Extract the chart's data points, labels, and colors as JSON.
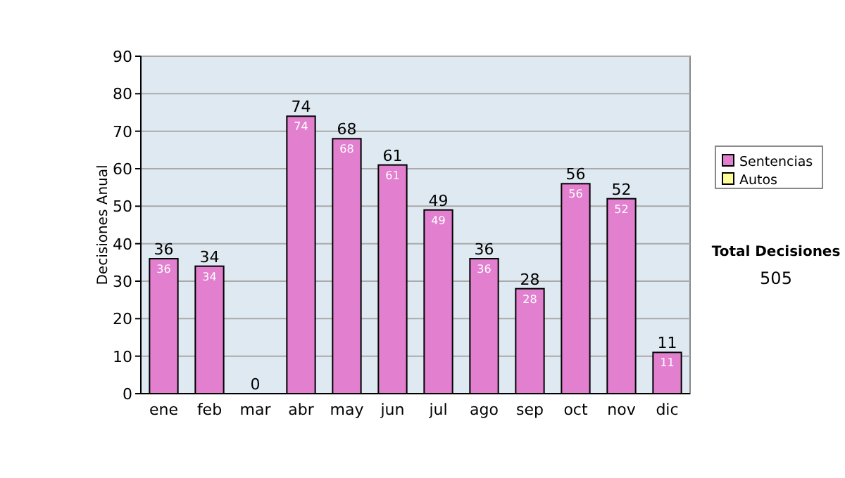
{
  "chart_data": {
    "type": "bar",
    "ylabel": "Decisiones Anual",
    "categories": [
      "ene",
      "feb",
      "mar",
      "abr",
      "may",
      "jun",
      "jul",
      "ago",
      "sep",
      "oct",
      "nov",
      "dic"
    ],
    "series": [
      {
        "name": "Sentencias",
        "color": "#e27fcf",
        "values": [
          36,
          34,
          0,
          74,
          68,
          61,
          49,
          36,
          28,
          56,
          52,
          11
        ],
        "value_labels": [
          "36",
          "34",
          null,
          "74",
          "68",
          "61",
          "49",
          "36",
          "28",
          "56",
          "52",
          "11"
        ]
      },
      {
        "name": "Autos",
        "color": "#ffff99",
        "values": [
          0,
          0,
          0,
          0,
          0,
          0,
          0,
          0,
          0,
          0,
          0,
          0
        ]
      }
    ],
    "totals": [
      "36",
      "34",
      "0",
      "74",
      "68",
      "61",
      "49",
      "36",
      "28",
      "56",
      "52",
      "11"
    ],
    "ylim": [
      0,
      90
    ],
    "yticks": [
      0,
      10,
      20,
      30,
      40,
      50,
      60,
      70,
      80,
      90
    ],
    "grid": "y",
    "legend": "right",
    "annotations": [
      "Total Decisiones",
      "505"
    ]
  }
}
